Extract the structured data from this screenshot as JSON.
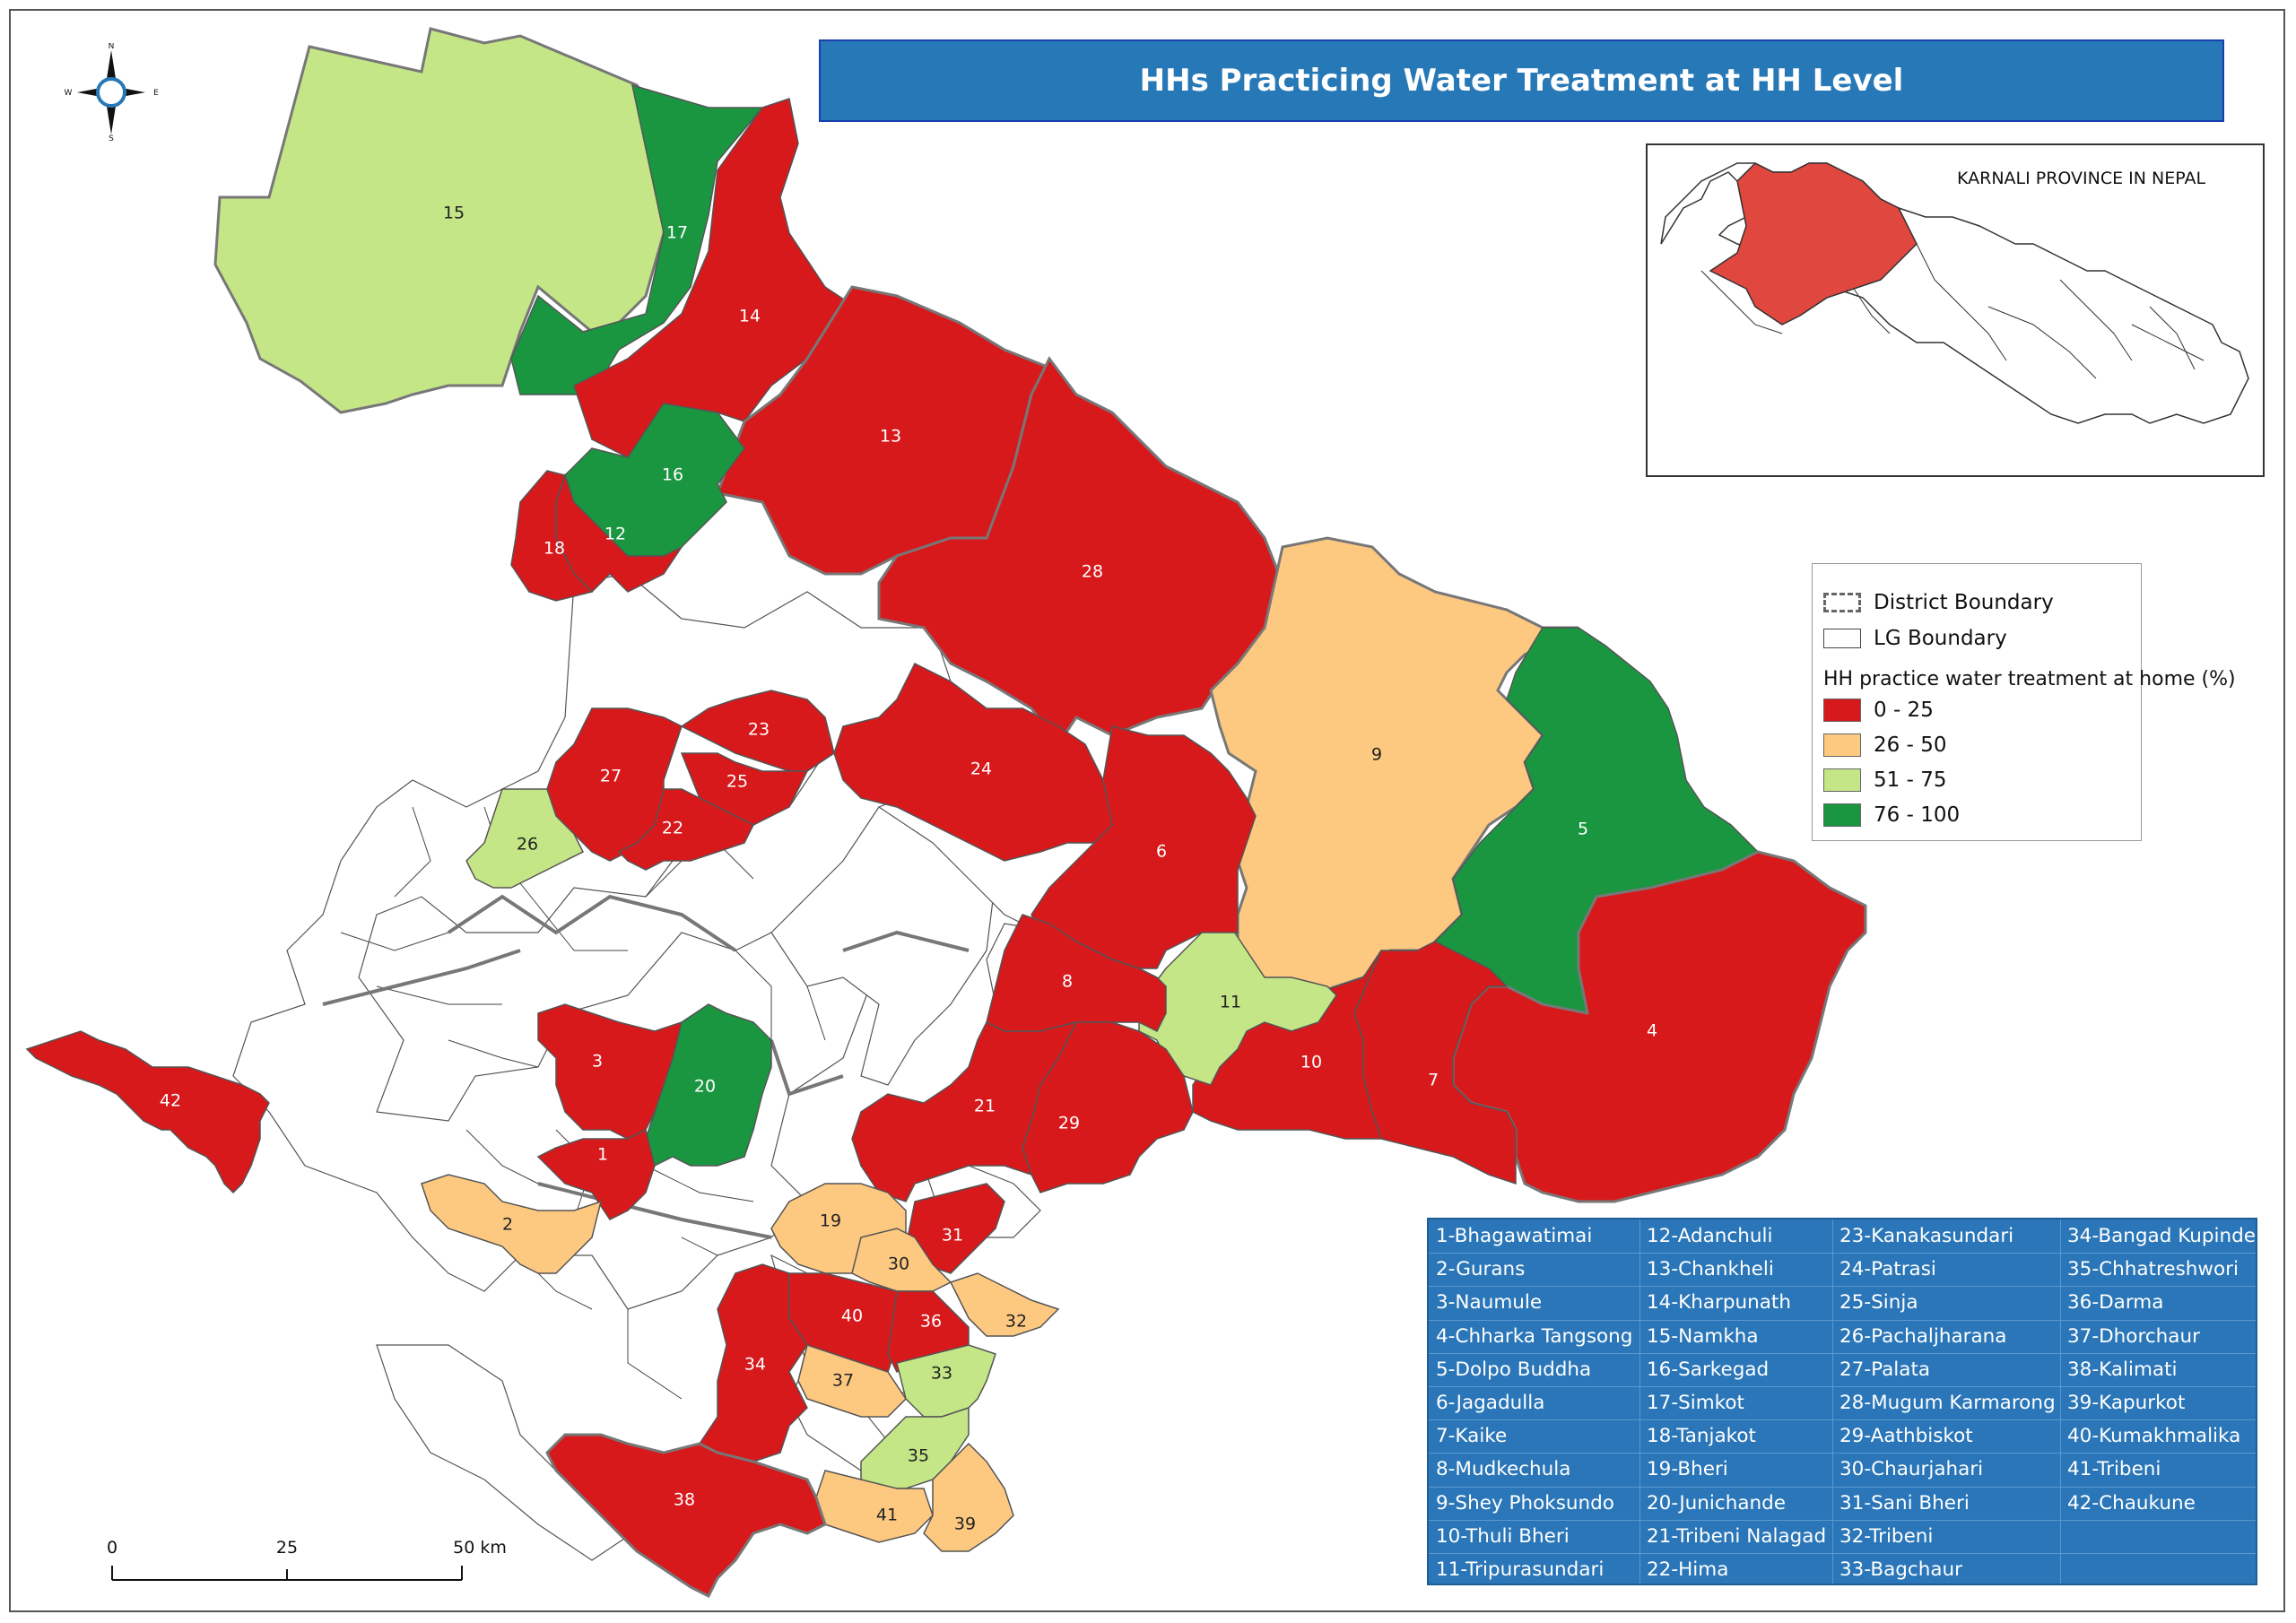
{
  "title": "HHs Practicing Water Treatment at HH Level",
  "inset": {
    "title": "KARNALI PROVINCE IN NEPAL"
  },
  "compass": {
    "n": "N",
    "s": "S",
    "e": "E",
    "w": "W"
  },
  "legend": {
    "district_boundary": "District Boundary",
    "lg_boundary": "LG Boundary",
    "heading": "HH practice water treatment at home  (%)",
    "classes": [
      {
        "label": "0 - 25",
        "color": "#d7191c"
      },
      {
        "label": "26 - 50",
        "color": "#fdc980"
      },
      {
        "label": "51 - 75",
        "color": "#c4e687"
      },
      {
        "label": "76 - 100",
        "color": "#1a9641"
      }
    ]
  },
  "scale": {
    "labels": [
      "0",
      "25",
      "50 km"
    ]
  },
  "units": [
    {
      "id": "1",
      "name": "1-Bhagawatimai",
      "class": 0
    },
    {
      "id": "2",
      "name": "2-Gurans",
      "class": 1
    },
    {
      "id": "3",
      "name": "3-Naumule",
      "class": 0
    },
    {
      "id": "4",
      "name": "4-Chharka Tangsong",
      "class": 0
    },
    {
      "id": "5",
      "name": "5-Dolpo Buddha",
      "class": 3
    },
    {
      "id": "6",
      "name": "6-Jagadulla",
      "class": 0
    },
    {
      "id": "7",
      "name": "7-Kaike",
      "class": 0
    },
    {
      "id": "8",
      "name": "8-Mudkechula",
      "class": 0
    },
    {
      "id": "9",
      "name": "9-Shey Phoksundo",
      "class": 1
    },
    {
      "id": "10",
      "name": "10-Thuli Bheri",
      "class": 0
    },
    {
      "id": "11",
      "name": "11-Tripurasundari",
      "class": 2
    },
    {
      "id": "12",
      "name": "12-Adanchuli",
      "class": 0
    },
    {
      "id": "13",
      "name": "13-Chankheli",
      "class": 0
    },
    {
      "id": "14",
      "name": "14-Kharpunath",
      "class": 0
    },
    {
      "id": "15",
      "name": "15-Namkha",
      "class": 2
    },
    {
      "id": "16",
      "name": "16-Sarkegad",
      "class": 3
    },
    {
      "id": "17",
      "name": "17-Simkot",
      "class": 3
    },
    {
      "id": "18",
      "name": "18-Tanjakot",
      "class": 0
    },
    {
      "id": "19",
      "name": "19-Bheri",
      "class": 1
    },
    {
      "id": "20",
      "name": "20-Junichande",
      "class": 3
    },
    {
      "id": "21",
      "name": "21-Tribeni Nalagad",
      "class": 0
    },
    {
      "id": "22",
      "name": "22-Hima",
      "class": 0
    },
    {
      "id": "23",
      "name": "23-Kanakasundari",
      "class": 0
    },
    {
      "id": "24",
      "name": "24-Patrasi",
      "class": 0
    },
    {
      "id": "25",
      "name": "25-Sinja",
      "class": 0
    },
    {
      "id": "26",
      "name": "26-Pachaljharana",
      "class": 2
    },
    {
      "id": "27",
      "name": "27-Palata",
      "class": 0
    },
    {
      "id": "28",
      "name": "28-Mugum Karmarong",
      "class": 0
    },
    {
      "id": "29",
      "name": "29-Aathbiskot",
      "class": 0
    },
    {
      "id": "30",
      "name": "30-Chaurjahari",
      "class": 1
    },
    {
      "id": "31",
      "name": "31-Sani Bheri",
      "class": 0
    },
    {
      "id": "32",
      "name": "32-Tribeni",
      "class": 1
    },
    {
      "id": "33",
      "name": "33-Bagchaur",
      "class": 2
    },
    {
      "id": "34",
      "name": "34-Bangad Kupinde",
      "class": 0
    },
    {
      "id": "35",
      "name": "35-Chhatreshwori",
      "class": 2
    },
    {
      "id": "36",
      "name": "36-Darma",
      "class": 0
    },
    {
      "id": "37",
      "name": "37-Dhorchaur",
      "class": 1
    },
    {
      "id": "38",
      "name": "38-Kalimati",
      "class": 0
    },
    {
      "id": "39",
      "name": "39-Kapurkot",
      "class": 1
    },
    {
      "id": "40",
      "name": "40-Kumakhmalika",
      "class": 0
    },
    {
      "id": "41",
      "name": "41-Tribeni",
      "class": 1
    },
    {
      "id": "42",
      "name": "42-Chaukune",
      "class": 0
    }
  ]
}
